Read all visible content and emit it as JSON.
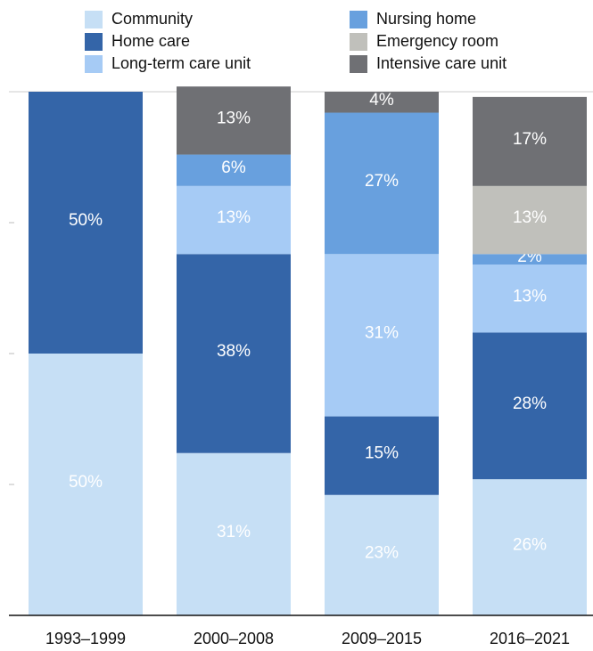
{
  "chart_data": {
    "type": "stacked_bar",
    "categories": [
      "1993–1999",
      "2000–2008",
      "2009–2015",
      "2016–2021"
    ],
    "series": [
      {
        "name": "Community",
        "color": "#c6dff5",
        "values": [
          50,
          31,
          23,
          26
        ],
        "value_labels": [
          "50%",
          "31%",
          "23%",
          "26%"
        ]
      },
      {
        "name": "Home care",
        "color": "#3465a8",
        "values": [
          50,
          38,
          15,
          28
        ],
        "value_labels": [
          "50%",
          "38%",
          "15%",
          "28%"
        ]
      },
      {
        "name": "Long-term care unit",
        "color": "#a6cbf5",
        "values": [
          null,
          13,
          31,
          13
        ],
        "value_labels": [
          null,
          "13%",
          "31%",
          "13%"
        ]
      },
      {
        "name": "Nursing home",
        "color": "#68a0de",
        "values": [
          null,
          6,
          27,
          2
        ],
        "value_labels": [
          null,
          "6%",
          "27%",
          "2%"
        ]
      },
      {
        "name": "Emergency room",
        "color": "#c0c0bb",
        "values": [
          null,
          null,
          null,
          13
        ],
        "value_labels": [
          null,
          null,
          null,
          "13%"
        ]
      },
      {
        "name": "Intensive care unit",
        "color": "#6f7074",
        "values": [
          null,
          13,
          4,
          17
        ],
        "value_labels": [
          null,
          "13%",
          "4%",
          "17%"
        ]
      }
    ],
    "ylim": [
      0,
      100
    ],
    "yticks": [
      0,
      25,
      50,
      75,
      100
    ]
  }
}
